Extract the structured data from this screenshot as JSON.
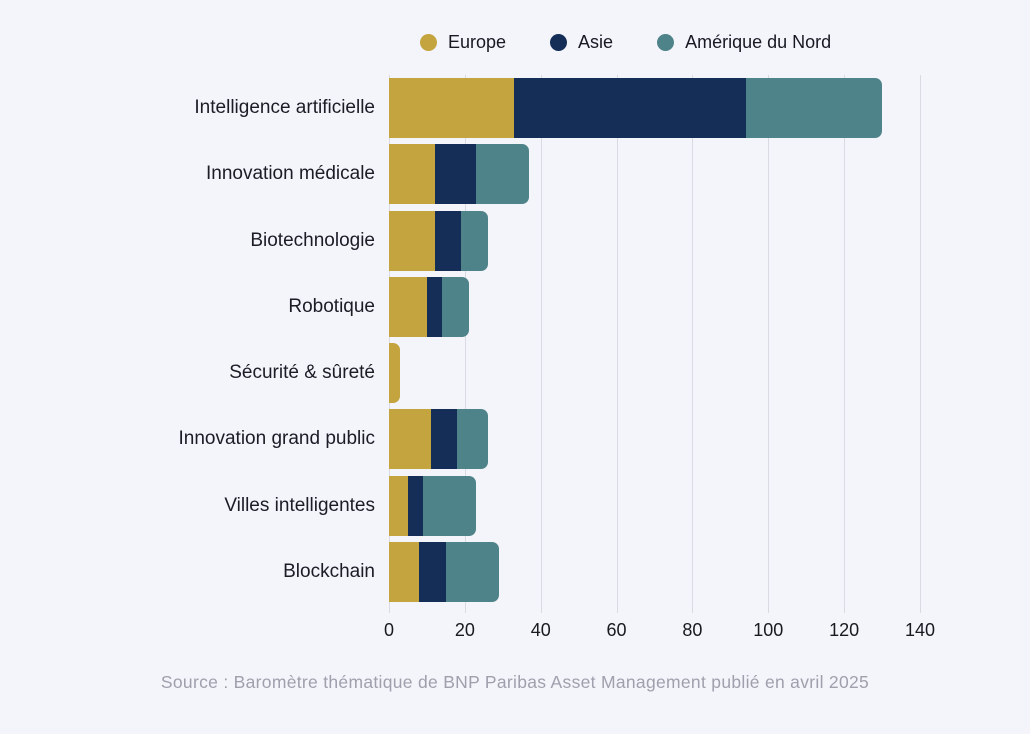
{
  "legend": {
    "items": [
      {
        "label": "Europe",
        "color": "#c4a43e"
      },
      {
        "label": "Asie",
        "color": "#142e57"
      },
      {
        "label": "Amérique du Nord",
        "color": "#4e8489"
      }
    ]
  },
  "chart_data": {
    "type": "bar",
    "orientation": "horizontal",
    "stacked": true,
    "categories": [
      "Intelligence artificielle",
      "Innovation médicale",
      "Biotechnologie",
      "Robotique",
      "Sécurité & sûreté",
      "Innovation grand public",
      "Villes intelligentes",
      "Blockchain"
    ],
    "series": [
      {
        "name": "Europe",
        "color": "#c4a43e",
        "values": [
          33,
          12,
          12,
          10,
          3,
          11,
          5,
          8
        ]
      },
      {
        "name": "Asie",
        "color": "#142e57",
        "values": [
          61,
          11,
          7,
          4,
          0,
          7,
          4,
          7
        ]
      },
      {
        "name": "Amérique du Nord",
        "color": "#4e8489",
        "values": [
          36,
          14,
          7,
          7,
          0,
          8,
          14,
          14
        ]
      }
    ],
    "totals": [
      130,
      37,
      26,
      21,
      3,
      26,
      23,
      29
    ],
    "xlim": [
      0,
      140
    ],
    "xticks": [
      0,
      20,
      40,
      60,
      80,
      100,
      120,
      140
    ],
    "grid": true,
    "legend_position": "top",
    "title": "",
    "xlabel": "",
    "ylabel": ""
  },
  "source": {
    "text": "Source : Baromètre thématique de BNP Paribas Asset Management publié en avril 2025"
  },
  "colors": {
    "background": "#f4f4fb",
    "gridline": "#d9dae4",
    "category_label": "#1b1c26",
    "tick_label": "#181a20",
    "source_text": "#9fa0ac"
  }
}
